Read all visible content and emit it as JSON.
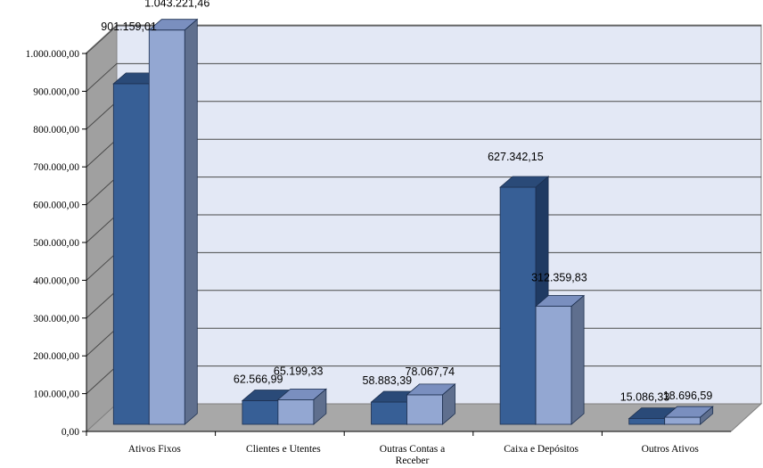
{
  "chart_data": {
    "type": "bar",
    "title": "",
    "xlabel": "",
    "ylabel": "",
    "categories": [
      "Ativos Fixos",
      "Clientes e Utentes",
      "Outras Contas a Receber",
      "Caixa e Depósitos",
      "Outros Ativos"
    ],
    "category_lines": [
      [
        "Ativos Fixos"
      ],
      [
        "Clientes e Utentes"
      ],
      [
        "Outras Contas a",
        "Receber"
      ],
      [
        "Caixa e Depósitos"
      ],
      [
        "Outros Ativos"
      ]
    ],
    "series": [
      {
        "values": [
          901159.01,
          62566.99,
          58883.39,
          627342.15,
          15086.33
        ],
        "labels": [
          "901.159,01",
          "62.566,99",
          "58.883,39",
          "627.342,15",
          "15.086,33"
        ]
      },
      {
        "values": [
          1043221.46,
          65199.33,
          78067.74,
          312359.83,
          18696.59
        ],
        "labels": [
          "1.043.221,46",
          "65.199,33",
          "78.067,74",
          "312.359,83",
          "18.696,59"
        ]
      }
    ],
    "ylim": [
      0,
      1000000
    ],
    "yticks": [
      0,
      100000,
      200000,
      300000,
      400000,
      500000,
      600000,
      700000,
      800000,
      900000,
      1000000
    ],
    "ytick_labels": [
      "0,00",
      "100.000,00",
      "200.000,00",
      "300.000,00",
      "400.000,00",
      "500.000,00",
      "600.000,00",
      "700.000,00",
      "800.000,00",
      "900.000,00",
      "1.000.000,00"
    ],
    "grid": true,
    "legend": "none",
    "colors": {
      "series1_front": "#375f96",
      "series1_top": "#2a4a78",
      "series1_side": "#1f3a62",
      "series2_front": "#93a7d2",
      "series2_top": "#7a8fbf",
      "series2_side": "#5f6f8e",
      "wall": "#e3e8f5",
      "side_wall": "#a0a0a0",
      "floor": "#a8a8a8",
      "gridline": "#4a4a4a"
    }
  }
}
